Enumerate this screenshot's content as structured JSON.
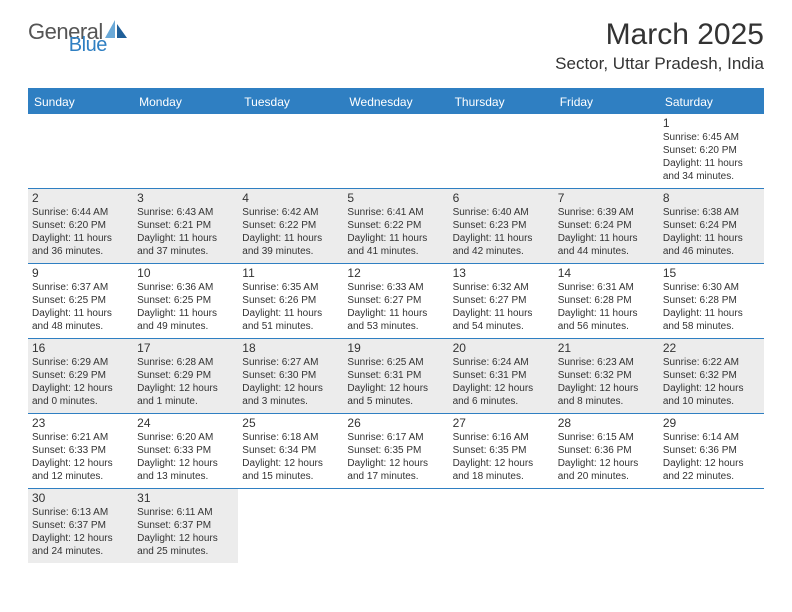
{
  "logo": {
    "text1": "General",
    "text2": "Blue"
  },
  "title": "March 2025",
  "location": "Sector, Uttar Pradesh, India",
  "colors": {
    "header_bg": "#2f7fc2",
    "header_text": "#ffffff",
    "shade_bg": "#ececec",
    "border": "#2f7fc2",
    "text": "#333333"
  },
  "typography": {
    "title_fontsize": 30,
    "location_fontsize": 17,
    "dow_fontsize": 12,
    "daynum_fontsize": 12,
    "detail_fontsize": 10
  },
  "dow": [
    "Sunday",
    "Monday",
    "Tuesday",
    "Wednesday",
    "Thursday",
    "Friday",
    "Saturday"
  ],
  "weeks": [
    [
      null,
      null,
      null,
      null,
      null,
      null,
      {
        "n": "1",
        "sr": "Sunrise: 6:45 AM",
        "ss": "Sunset: 6:20 PM",
        "d1": "Daylight: 11 hours",
        "d2": "and 34 minutes."
      }
    ],
    [
      {
        "n": "2",
        "sr": "Sunrise: 6:44 AM",
        "ss": "Sunset: 6:20 PM",
        "d1": "Daylight: 11 hours",
        "d2": "and 36 minutes.",
        "shade": true
      },
      {
        "n": "3",
        "sr": "Sunrise: 6:43 AM",
        "ss": "Sunset: 6:21 PM",
        "d1": "Daylight: 11 hours",
        "d2": "and 37 minutes.",
        "shade": true
      },
      {
        "n": "4",
        "sr": "Sunrise: 6:42 AM",
        "ss": "Sunset: 6:22 PM",
        "d1": "Daylight: 11 hours",
        "d2": "and 39 minutes.",
        "shade": true
      },
      {
        "n": "5",
        "sr": "Sunrise: 6:41 AM",
        "ss": "Sunset: 6:22 PM",
        "d1": "Daylight: 11 hours",
        "d2": "and 41 minutes.",
        "shade": true
      },
      {
        "n": "6",
        "sr": "Sunrise: 6:40 AM",
        "ss": "Sunset: 6:23 PM",
        "d1": "Daylight: 11 hours",
        "d2": "and 42 minutes.",
        "shade": true
      },
      {
        "n": "7",
        "sr": "Sunrise: 6:39 AM",
        "ss": "Sunset: 6:24 PM",
        "d1": "Daylight: 11 hours",
        "d2": "and 44 minutes.",
        "shade": true
      },
      {
        "n": "8",
        "sr": "Sunrise: 6:38 AM",
        "ss": "Sunset: 6:24 PM",
        "d1": "Daylight: 11 hours",
        "d2": "and 46 minutes.",
        "shade": true
      }
    ],
    [
      {
        "n": "9",
        "sr": "Sunrise: 6:37 AM",
        "ss": "Sunset: 6:25 PM",
        "d1": "Daylight: 11 hours",
        "d2": "and 48 minutes."
      },
      {
        "n": "10",
        "sr": "Sunrise: 6:36 AM",
        "ss": "Sunset: 6:25 PM",
        "d1": "Daylight: 11 hours",
        "d2": "and 49 minutes."
      },
      {
        "n": "11",
        "sr": "Sunrise: 6:35 AM",
        "ss": "Sunset: 6:26 PM",
        "d1": "Daylight: 11 hours",
        "d2": "and 51 minutes."
      },
      {
        "n": "12",
        "sr": "Sunrise: 6:33 AM",
        "ss": "Sunset: 6:27 PM",
        "d1": "Daylight: 11 hours",
        "d2": "and 53 minutes."
      },
      {
        "n": "13",
        "sr": "Sunrise: 6:32 AM",
        "ss": "Sunset: 6:27 PM",
        "d1": "Daylight: 11 hours",
        "d2": "and 54 minutes."
      },
      {
        "n": "14",
        "sr": "Sunrise: 6:31 AM",
        "ss": "Sunset: 6:28 PM",
        "d1": "Daylight: 11 hours",
        "d2": "and 56 minutes."
      },
      {
        "n": "15",
        "sr": "Sunrise: 6:30 AM",
        "ss": "Sunset: 6:28 PM",
        "d1": "Daylight: 11 hours",
        "d2": "and 58 minutes."
      }
    ],
    [
      {
        "n": "16",
        "sr": "Sunrise: 6:29 AM",
        "ss": "Sunset: 6:29 PM",
        "d1": "Daylight: 12 hours",
        "d2": "and 0 minutes.",
        "shade": true
      },
      {
        "n": "17",
        "sr": "Sunrise: 6:28 AM",
        "ss": "Sunset: 6:29 PM",
        "d1": "Daylight: 12 hours",
        "d2": "and 1 minute.",
        "shade": true
      },
      {
        "n": "18",
        "sr": "Sunrise: 6:27 AM",
        "ss": "Sunset: 6:30 PM",
        "d1": "Daylight: 12 hours",
        "d2": "and 3 minutes.",
        "shade": true
      },
      {
        "n": "19",
        "sr": "Sunrise: 6:25 AM",
        "ss": "Sunset: 6:31 PM",
        "d1": "Daylight: 12 hours",
        "d2": "and 5 minutes.",
        "shade": true
      },
      {
        "n": "20",
        "sr": "Sunrise: 6:24 AM",
        "ss": "Sunset: 6:31 PM",
        "d1": "Daylight: 12 hours",
        "d2": "and 6 minutes.",
        "shade": true
      },
      {
        "n": "21",
        "sr": "Sunrise: 6:23 AM",
        "ss": "Sunset: 6:32 PM",
        "d1": "Daylight: 12 hours",
        "d2": "and 8 minutes.",
        "shade": true
      },
      {
        "n": "22",
        "sr": "Sunrise: 6:22 AM",
        "ss": "Sunset: 6:32 PM",
        "d1": "Daylight: 12 hours",
        "d2": "and 10 minutes.",
        "shade": true
      }
    ],
    [
      {
        "n": "23",
        "sr": "Sunrise: 6:21 AM",
        "ss": "Sunset: 6:33 PM",
        "d1": "Daylight: 12 hours",
        "d2": "and 12 minutes."
      },
      {
        "n": "24",
        "sr": "Sunrise: 6:20 AM",
        "ss": "Sunset: 6:33 PM",
        "d1": "Daylight: 12 hours",
        "d2": "and 13 minutes."
      },
      {
        "n": "25",
        "sr": "Sunrise: 6:18 AM",
        "ss": "Sunset: 6:34 PM",
        "d1": "Daylight: 12 hours",
        "d2": "and 15 minutes."
      },
      {
        "n": "26",
        "sr": "Sunrise: 6:17 AM",
        "ss": "Sunset: 6:35 PM",
        "d1": "Daylight: 12 hours",
        "d2": "and 17 minutes."
      },
      {
        "n": "27",
        "sr": "Sunrise: 6:16 AM",
        "ss": "Sunset: 6:35 PM",
        "d1": "Daylight: 12 hours",
        "d2": "and 18 minutes."
      },
      {
        "n": "28",
        "sr": "Sunrise: 6:15 AM",
        "ss": "Sunset: 6:36 PM",
        "d1": "Daylight: 12 hours",
        "d2": "and 20 minutes."
      },
      {
        "n": "29",
        "sr": "Sunrise: 6:14 AM",
        "ss": "Sunset: 6:36 PM",
        "d1": "Daylight: 12 hours",
        "d2": "and 22 minutes."
      }
    ],
    [
      {
        "n": "30",
        "sr": "Sunrise: 6:13 AM",
        "ss": "Sunset: 6:37 PM",
        "d1": "Daylight: 12 hours",
        "d2": "and 24 minutes.",
        "shade": true
      },
      {
        "n": "31",
        "sr": "Sunrise: 6:11 AM",
        "ss": "Sunset: 6:37 PM",
        "d1": "Daylight: 12 hours",
        "d2": "and 25 minutes.",
        "shade": true
      },
      null,
      null,
      null,
      null,
      null
    ]
  ]
}
